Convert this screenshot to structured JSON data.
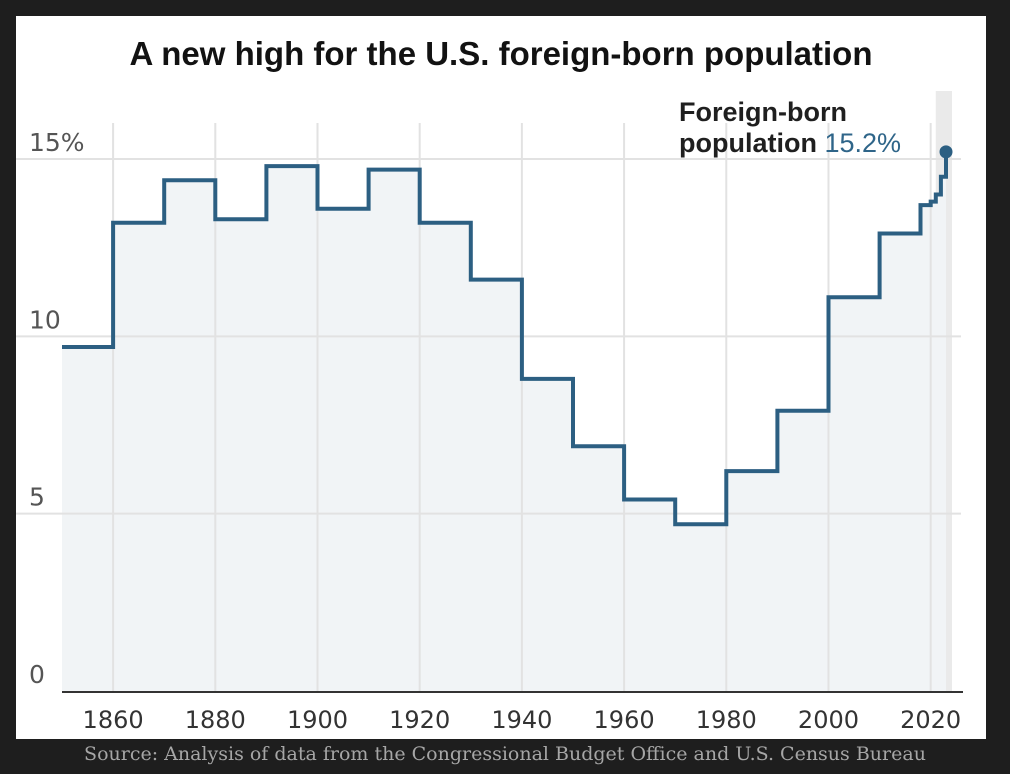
{
  "chart_data": {
    "type": "line",
    "style": "step",
    "title": "A new high for the U.S. foreign-born population",
    "xlabel": "",
    "ylabel": "",
    "xlim": [
      1850,
      2023
    ],
    "ylim": [
      0,
      15
    ],
    "y_ticks": [
      {
        "value": 0,
        "label": "0"
      },
      {
        "value": 5,
        "label": "5"
      },
      {
        "value": 10,
        "label": "10"
      },
      {
        "value": 15,
        "label": "15%"
      }
    ],
    "x_ticks": [
      {
        "value": 1860,
        "label": "1860"
      },
      {
        "value": 1880,
        "label": "1880"
      },
      {
        "value": 1900,
        "label": "1900"
      },
      {
        "value": 1920,
        "label": "1920"
      },
      {
        "value": 1940,
        "label": "1940"
      },
      {
        "value": 1960,
        "label": "1960"
      },
      {
        "value": 1980,
        "label": "1980"
      },
      {
        "value": 2000,
        "label": "2000"
      },
      {
        "value": 2020,
        "label": "2020"
      }
    ],
    "grid": true,
    "series": [
      {
        "name": "Foreign-born population",
        "x": [
          1850,
          1860,
          1870,
          1880,
          1890,
          1900,
          1910,
          1920,
          1930,
          1940,
          1950,
          1960,
          1970,
          1980,
          1990,
          2000,
          2010,
          2018,
          2019,
          2020,
          2021,
          2022,
          2023
        ],
        "values": [
          9.7,
          13.2,
          14.4,
          13.3,
          14.8,
          13.6,
          14.7,
          13.2,
          11.6,
          8.8,
          6.9,
          5.4,
          4.7,
          6.2,
          7.9,
          11.1,
          12.9,
          13.7,
          13.7,
          13.8,
          14.0,
          14.5,
          15.2
        ],
        "color": "#2c5f82",
        "fill": "#f1f4f6"
      }
    ],
    "annotation": {
      "line1": "Foreign-born",
      "line2": "population",
      "value_label": "15.2%",
      "highlight_from": 2021
    }
  },
  "source": "Source: Analysis of data from the Congressional Budget Office and U.S. Census Bureau",
  "colors": {
    "line": "#2c5f82",
    "area": "#f1f4f6",
    "highlight_band": "#eaeaea",
    "grid": "#e2e2e2",
    "axis": "#333333"
  }
}
